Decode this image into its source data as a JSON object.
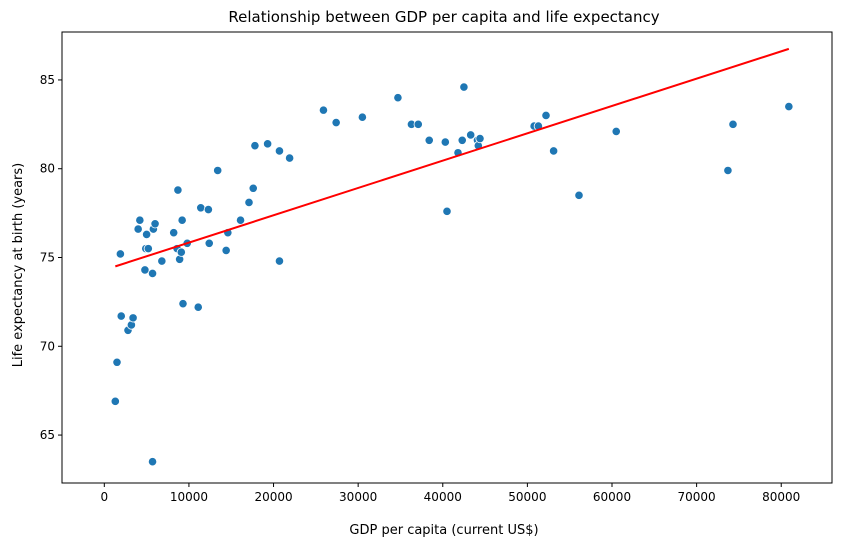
{
  "chart_data": {
    "type": "scatter",
    "title": "Relationship between GDP per capita and life expectancy",
    "xlabel": "GDP per capita (current US$)",
    "ylabel": "Life expectancy at birth (years)",
    "xlim": [
      -5000,
      86000
    ],
    "ylim": [
      62.3,
      87.7
    ],
    "xticks": [
      0,
      10000,
      20000,
      30000,
      40000,
      50000,
      60000,
      70000,
      80000
    ],
    "yticks": [
      65,
      70,
      75,
      80,
      85
    ],
    "grid": false,
    "point_color": "#1f77b4",
    "line_color": "#ff0000",
    "regression_line": {
      "x": [
        1300,
        80900
      ],
      "y": [
        74.5,
        86.75
      ]
    },
    "points": [
      {
        "x": 1300,
        "y": 66.9
      },
      {
        "x": 1500,
        "y": 69.1
      },
      {
        "x": 1900,
        "y": 75.2
      },
      {
        "x": 2000,
        "y": 71.7
      },
      {
        "x": 2800,
        "y": 70.9
      },
      {
        "x": 3200,
        "y": 71.2
      },
      {
        "x": 3400,
        "y": 71.6
      },
      {
        "x": 4000,
        "y": 76.6
      },
      {
        "x": 4200,
        "y": 77.1
      },
      {
        "x": 4800,
        "y": 74.3
      },
      {
        "x": 4900,
        "y": 75.5
      },
      {
        "x": 5000,
        "y": 76.3
      },
      {
        "x": 5200,
        "y": 75.5
      },
      {
        "x": 5700,
        "y": 74.1
      },
      {
        "x": 5700,
        "y": 63.5
      },
      {
        "x": 5800,
        "y": 76.6
      },
      {
        "x": 6000,
        "y": 76.9
      },
      {
        "x": 6800,
        "y": 74.8
      },
      {
        "x": 8200,
        "y": 76.4
      },
      {
        "x": 8600,
        "y": 75.5
      },
      {
        "x": 8700,
        "y": 78.8
      },
      {
        "x": 8900,
        "y": 74.9
      },
      {
        "x": 9100,
        "y": 75.3
      },
      {
        "x": 9200,
        "y": 77.1
      },
      {
        "x": 9300,
        "y": 72.4
      },
      {
        "x": 9800,
        "y": 75.8
      },
      {
        "x": 11100,
        "y": 72.2
      },
      {
        "x": 11400,
        "y": 77.8
      },
      {
        "x": 12300,
        "y": 77.7
      },
      {
        "x": 12400,
        "y": 75.8
      },
      {
        "x": 13400,
        "y": 79.9
      },
      {
        "x": 14400,
        "y": 75.4
      },
      {
        "x": 14600,
        "y": 76.4
      },
      {
        "x": 16100,
        "y": 77.1
      },
      {
        "x": 17100,
        "y": 78.1
      },
      {
        "x": 17600,
        "y": 78.9
      },
      {
        "x": 17800,
        "y": 81.3
      },
      {
        "x": 19300,
        "y": 81.4
      },
      {
        "x": 20700,
        "y": 81.0
      },
      {
        "x": 20700,
        "y": 74.8
      },
      {
        "x": 21900,
        "y": 80.6
      },
      {
        "x": 25900,
        "y": 83.3
      },
      {
        "x": 27400,
        "y": 82.6
      },
      {
        "x": 30500,
        "y": 82.9
      },
      {
        "x": 34700,
        "y": 84.0
      },
      {
        "x": 36300,
        "y": 82.5
      },
      {
        "x": 37100,
        "y": 82.5
      },
      {
        "x": 38400,
        "y": 81.6
      },
      {
        "x": 40300,
        "y": 81.5
      },
      {
        "x": 40500,
        "y": 77.6
      },
      {
        "x": 41800,
        "y": 80.9
      },
      {
        "x": 42300,
        "y": 81.6
      },
      {
        "x": 42500,
        "y": 84.6
      },
      {
        "x": 43300,
        "y": 81.9
      },
      {
        "x": 44100,
        "y": 81.6
      },
      {
        "x": 44200,
        "y": 81.3
      },
      {
        "x": 44400,
        "y": 81.7
      },
      {
        "x": 50800,
        "y": 82.4
      },
      {
        "x": 51300,
        "y": 82.4
      },
      {
        "x": 52200,
        "y": 83.0
      },
      {
        "x": 53100,
        "y": 81.0
      },
      {
        "x": 56100,
        "y": 78.5
      },
      {
        "x": 60500,
        "y": 82.1
      },
      {
        "x": 73700,
        "y": 79.9
      },
      {
        "x": 74300,
        "y": 82.5
      },
      {
        "x": 80900,
        "y": 83.5
      }
    ]
  }
}
